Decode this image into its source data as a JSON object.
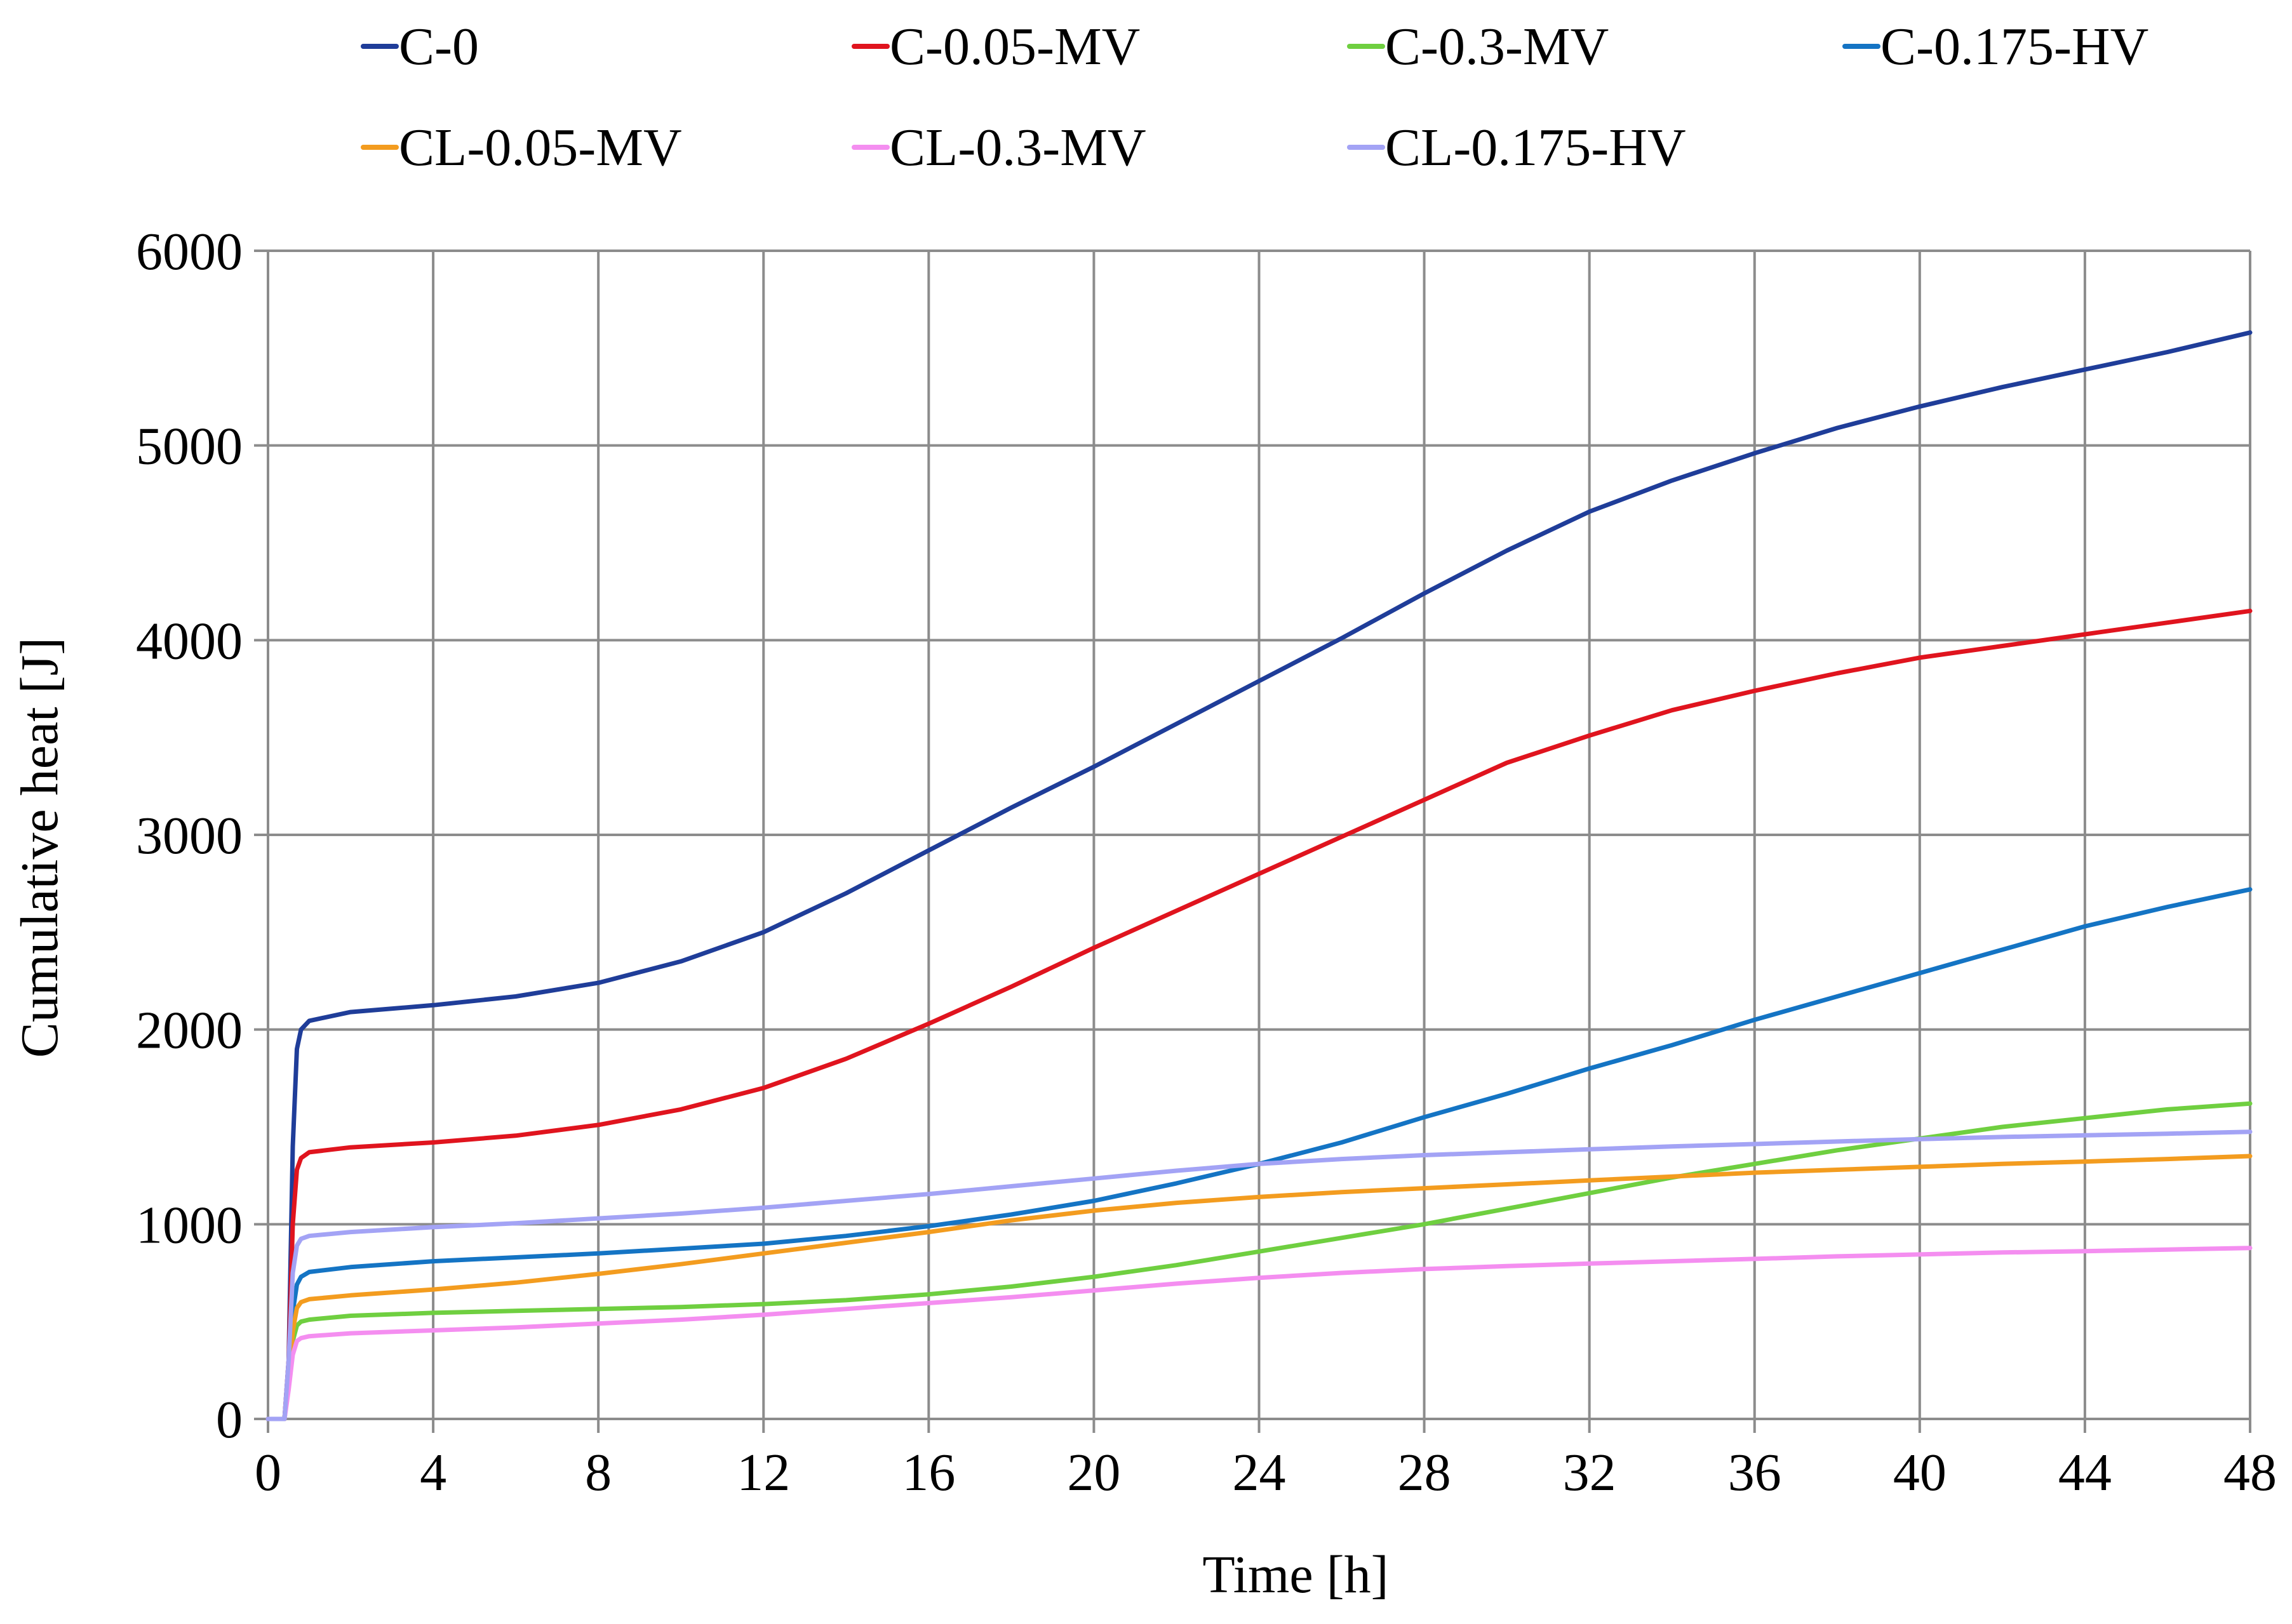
{
  "chart_data": {
    "type": "line",
    "title": "",
    "xlabel": "Time [h]",
    "ylabel": "Cumulative heat   [J]",
    "xlim": [
      0,
      48
    ],
    "ylim": [
      0,
      6000
    ],
    "x_ticks": [
      0,
      4,
      8,
      12,
      16,
      20,
      24,
      28,
      32,
      36,
      40,
      44,
      48
    ],
    "y_ticks": [
      0,
      1000,
      2000,
      3000,
      4000,
      5000,
      6000
    ],
    "grid": true,
    "legend_position": "top",
    "series": [
      {
        "name": "C-0",
        "color": "#1f3d99",
        "points": [
          [
            0,
            0
          ],
          [
            0.4,
            0
          ],
          [
            0.5,
            300
          ],
          [
            0.6,
            1400
          ],
          [
            0.7,
            1900
          ],
          [
            0.8,
            2000
          ],
          [
            1,
            2045
          ],
          [
            2,
            2090
          ],
          [
            4,
            2125
          ],
          [
            6,
            2170
          ],
          [
            8,
            2240
          ],
          [
            10,
            2350
          ],
          [
            12,
            2500
          ],
          [
            14,
            2700
          ],
          [
            16,
            2920
          ],
          [
            18,
            3140
          ],
          [
            20,
            3350
          ],
          [
            22,
            3570
          ],
          [
            24,
            3790
          ],
          [
            26,
            4010
          ],
          [
            28,
            4240
          ],
          [
            30,
            4460
          ],
          [
            32,
            4660
          ],
          [
            34,
            4820
          ],
          [
            36,
            4960
          ],
          [
            38,
            5090
          ],
          [
            40,
            5200
          ],
          [
            42,
            5300
          ],
          [
            44,
            5390
          ],
          [
            46,
            5480
          ],
          [
            48,
            5580
          ]
        ]
      },
      {
        "name": "C-0.05-MV",
        "color": "#e0141e",
        "points": [
          [
            0,
            0
          ],
          [
            0.4,
            0
          ],
          [
            0.5,
            300
          ],
          [
            0.6,
            1000
          ],
          [
            0.7,
            1280
          ],
          [
            0.8,
            1340
          ],
          [
            1,
            1370
          ],
          [
            2,
            1395
          ],
          [
            4,
            1420
          ],
          [
            6,
            1455
          ],
          [
            8,
            1510
          ],
          [
            10,
            1590
          ],
          [
            12,
            1700
          ],
          [
            14,
            1850
          ],
          [
            16,
            2030
          ],
          [
            18,
            2220
          ],
          [
            20,
            2420
          ],
          [
            22,
            2610
          ],
          [
            24,
            2800
          ],
          [
            26,
            2990
          ],
          [
            28,
            3180
          ],
          [
            30,
            3370
          ],
          [
            32,
            3510
          ],
          [
            34,
            3640
          ],
          [
            36,
            3740
          ],
          [
            38,
            3830
          ],
          [
            40,
            3910
          ],
          [
            42,
            3970
          ],
          [
            44,
            4030
          ],
          [
            46,
            4090
          ],
          [
            48,
            4150
          ]
        ]
      },
      {
        "name": "C-0.3-MV",
        "color": "#6fcf40",
        "points": [
          [
            0,
            0
          ],
          [
            0.4,
            0
          ],
          [
            0.5,
            200
          ],
          [
            0.6,
            400
          ],
          [
            0.7,
            480
          ],
          [
            0.8,
            500
          ],
          [
            1,
            510
          ],
          [
            2,
            530
          ],
          [
            4,
            545
          ],
          [
            6,
            555
          ],
          [
            8,
            565
          ],
          [
            10,
            575
          ],
          [
            12,
            590
          ],
          [
            14,
            610
          ],
          [
            16,
            640
          ],
          [
            18,
            680
          ],
          [
            20,
            730
          ],
          [
            22,
            790
          ],
          [
            24,
            860
          ],
          [
            26,
            930
          ],
          [
            28,
            1000
          ],
          [
            30,
            1080
          ],
          [
            32,
            1160
          ],
          [
            34,
            1240
          ],
          [
            36,
            1310
          ],
          [
            38,
            1380
          ],
          [
            40,
            1440
          ],
          [
            42,
            1500
          ],
          [
            44,
            1545
          ],
          [
            46,
            1590
          ],
          [
            48,
            1620
          ]
        ]
      },
      {
        "name": "C-0.175-HV",
        "color": "#1474c4",
        "points": [
          [
            0,
            0
          ],
          [
            0.4,
            0
          ],
          [
            0.5,
            250
          ],
          [
            0.6,
            550
          ],
          [
            0.7,
            690
          ],
          [
            0.8,
            730
          ],
          [
            1,
            755
          ],
          [
            2,
            780
          ],
          [
            4,
            810
          ],
          [
            6,
            830
          ],
          [
            8,
            850
          ],
          [
            10,
            875
          ],
          [
            12,
            900
          ],
          [
            14,
            940
          ],
          [
            16,
            990
          ],
          [
            18,
            1050
          ],
          [
            20,
            1120
          ],
          [
            22,
            1210
          ],
          [
            24,
            1310
          ],
          [
            26,
            1420
          ],
          [
            28,
            1550
          ],
          [
            30,
            1670
          ],
          [
            32,
            1800
          ],
          [
            34,
            1920
          ],
          [
            36,
            2050
          ],
          [
            38,
            2170
          ],
          [
            40,
            2290
          ],
          [
            42,
            2410
          ],
          [
            44,
            2530
          ],
          [
            46,
            2630
          ],
          [
            48,
            2720
          ]
        ]
      },
      {
        "name": "CL-0.05-MV",
        "color": "#f39c1f",
        "points": [
          [
            0,
            0
          ],
          [
            0.4,
            0
          ],
          [
            0.5,
            200
          ],
          [
            0.6,
            450
          ],
          [
            0.7,
            570
          ],
          [
            0.8,
            600
          ],
          [
            1,
            615
          ],
          [
            2,
            635
          ],
          [
            4,
            665
          ],
          [
            6,
            700
          ],
          [
            8,
            745
          ],
          [
            10,
            795
          ],
          [
            12,
            850
          ],
          [
            14,
            905
          ],
          [
            16,
            960
          ],
          [
            18,
            1020
          ],
          [
            20,
            1070
          ],
          [
            22,
            1110
          ],
          [
            24,
            1140
          ],
          [
            26,
            1165
          ],
          [
            28,
            1185
          ],
          [
            30,
            1205
          ],
          [
            32,
            1225
          ],
          [
            34,
            1245
          ],
          [
            36,
            1265
          ],
          [
            38,
            1280
          ],
          [
            40,
            1295
          ],
          [
            42,
            1310
          ],
          [
            44,
            1322
          ],
          [
            46,
            1335
          ],
          [
            48,
            1350
          ]
        ]
      },
      {
        "name": "CL-0.3-MV",
        "color": "#f48ef0",
        "points": [
          [
            0,
            0
          ],
          [
            0.4,
            0
          ],
          [
            0.5,
            150
          ],
          [
            0.6,
            330
          ],
          [
            0.7,
            400
          ],
          [
            0.8,
            415
          ],
          [
            1,
            425
          ],
          [
            2,
            440
          ],
          [
            4,
            455
          ],
          [
            6,
            470
          ],
          [
            8,
            490
          ],
          [
            10,
            510
          ],
          [
            12,
            535
          ],
          [
            14,
            565
          ],
          [
            16,
            595
          ],
          [
            18,
            625
          ],
          [
            20,
            660
          ],
          [
            22,
            695
          ],
          [
            24,
            725
          ],
          [
            26,
            750
          ],
          [
            28,
            770
          ],
          [
            30,
            785
          ],
          [
            32,
            798
          ],
          [
            34,
            810
          ],
          [
            36,
            822
          ],
          [
            38,
            835
          ],
          [
            40,
            845
          ],
          [
            42,
            855
          ],
          [
            44,
            862
          ],
          [
            46,
            870
          ],
          [
            48,
            878
          ]
        ]
      },
      {
        "name": "CL-0.175-HV",
        "color": "#a3a3f5",
        "points": [
          [
            0,
            0
          ],
          [
            0.4,
            0
          ],
          [
            0.5,
            300
          ],
          [
            0.6,
            750
          ],
          [
            0.7,
            890
          ],
          [
            0.8,
            925
          ],
          [
            1,
            940
          ],
          [
            2,
            960
          ],
          [
            4,
            985
          ],
          [
            6,
            1005
          ],
          [
            8,
            1030
          ],
          [
            10,
            1055
          ],
          [
            12,
            1085
          ],
          [
            14,
            1120
          ],
          [
            16,
            1155
          ],
          [
            18,
            1195
          ],
          [
            20,
            1235
          ],
          [
            22,
            1275
          ],
          [
            24,
            1310
          ],
          [
            26,
            1335
          ],
          [
            28,
            1355
          ],
          [
            30,
            1370
          ],
          [
            32,
            1385
          ],
          [
            34,
            1400
          ],
          [
            36,
            1412
          ],
          [
            38,
            1425
          ],
          [
            40,
            1437
          ],
          [
            42,
            1448
          ],
          [
            44,
            1457
          ],
          [
            46,
            1465
          ],
          [
            48,
            1475
          ]
        ]
      }
    ]
  }
}
